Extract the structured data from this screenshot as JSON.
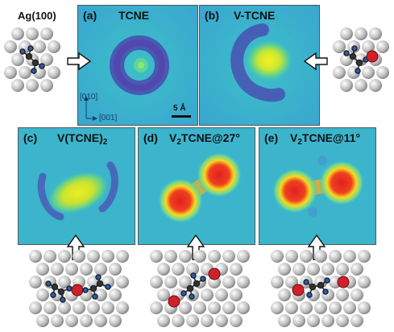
{
  "figure": {
    "substrate_label": "Ag(100)",
    "panels": [
      {
        "id": "a",
        "label": "(a)",
        "title": "TCNE",
        "sub": "",
        "tail": ""
      },
      {
        "id": "b",
        "label": "(b)",
        "title": "V-TCNE",
        "sub": "",
        "tail": ""
      },
      {
        "id": "c",
        "label": "(c)",
        "title": "V(TCNE)",
        "sub": "2",
        "tail": ""
      },
      {
        "id": "d",
        "label": "(d)",
        "title": "V",
        "sub": "2",
        "tail": "TCNE@27°"
      },
      {
        "id": "e",
        "label": "(e)",
        "title": "V",
        "sub": "2",
        "tail": "TCNE@11°"
      }
    ],
    "axes": {
      "y_dir": "[010]",
      "x_dir": "[001]"
    },
    "scale_bar": "5 Å",
    "colors": {
      "background": "#38b0c8",
      "high": "#e8262a",
      "mid": "#f6ea1c",
      "low": "#3a3aa0",
      "silver": "#c8c8c8",
      "vanadium": "#d0202a",
      "nitrogen": "#2060c0",
      "carbon": "#404040"
    }
  }
}
